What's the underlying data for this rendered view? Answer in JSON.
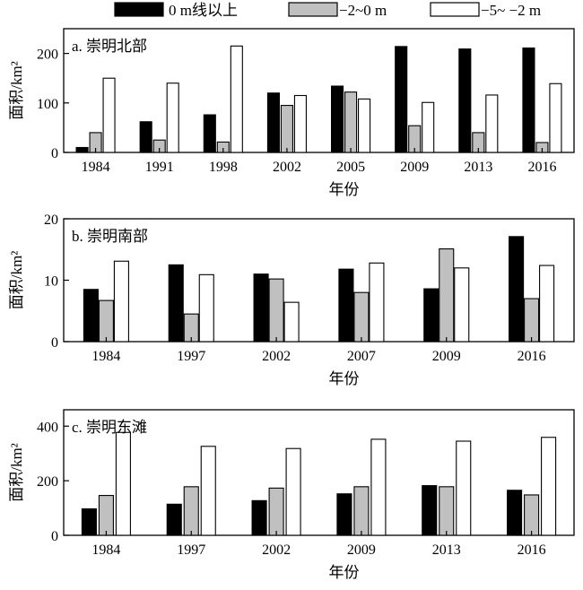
{
  "legend": [
    {
      "label": "0 m线以上",
      "color": "#000000"
    },
    {
      "label": "−2~0 m",
      "color": "#c0c0c0"
    },
    {
      "label": "−5~ −2 m",
      "color": "#ffffff"
    }
  ],
  "chart_data": [
    {
      "type": "bar",
      "title": "a. 崇明北部",
      "xlabel": "年份",
      "ylabel": "面积/km²",
      "ylim": [
        0,
        250
      ],
      "yticks": [
        0,
        100,
        200
      ],
      "legend_position": "top",
      "categories": [
        "1984",
        "1991",
        "1998",
        "2002",
        "2005",
        "2009",
        "2013",
        "2016"
      ],
      "series": [
        {
          "name": "0 m线以上",
          "color": "#000000",
          "values": [
            10,
            62,
            76,
            120,
            134,
            214,
            209,
            211
          ]
        },
        {
          "name": "−2~0 m",
          "color": "#c0c0c0",
          "values": [
            40,
            25,
            21,
            95,
            122,
            54,
            40,
            20
          ]
        },
        {
          "name": "−5~ −2 m",
          "color": "#ffffff",
          "values": [
            150,
            140,
            215,
            115,
            108,
            101,
            116,
            139
          ]
        }
      ]
    },
    {
      "type": "bar",
      "title": "b. 崇明南部",
      "xlabel": "年份",
      "ylabel": "面积/km²",
      "ylim": [
        0,
        20
      ],
      "yticks": [
        0,
        10,
        20
      ],
      "categories": [
        "1984",
        "1997",
        "2002",
        "2007",
        "2009",
        "2016"
      ],
      "series": [
        {
          "name": "0 m线以上",
          "color": "#000000",
          "values": [
            8.5,
            12.5,
            11,
            11.8,
            8.6,
            17.1
          ]
        },
        {
          "name": "−2~0 m",
          "color": "#c0c0c0",
          "values": [
            6.7,
            4.5,
            10.2,
            8,
            15.1,
            7
          ]
        },
        {
          "name": "−5~ −2 m",
          "color": "#ffffff",
          "values": [
            13.1,
            10.9,
            6.4,
            12.8,
            12,
            12.4
          ]
        }
      ]
    },
    {
      "type": "bar",
      "title": "c. 崇明东滩",
      "xlabel": "年份",
      "ylabel": "面积/km²",
      "ylim": [
        0,
        460
      ],
      "yticks": [
        0,
        200,
        400
      ],
      "categories": [
        "1984",
        "1997",
        "2002",
        "2009",
        "2013",
        "2016"
      ],
      "series": [
        {
          "name": "0 m线以上",
          "color": "#000000",
          "values": [
            97,
            114,
            127,
            152,
            182,
            165
          ]
        },
        {
          "name": "−2~0 m",
          "color": "#c0c0c0",
          "values": [
            146,
            178,
            173,
            178,
            178,
            148
          ]
        },
        {
          "name": "−5~ −2 m",
          "color": "#ffffff",
          "values": [
            377,
            326,
            318,
            352,
            345,
            359
          ]
        }
      ]
    }
  ]
}
